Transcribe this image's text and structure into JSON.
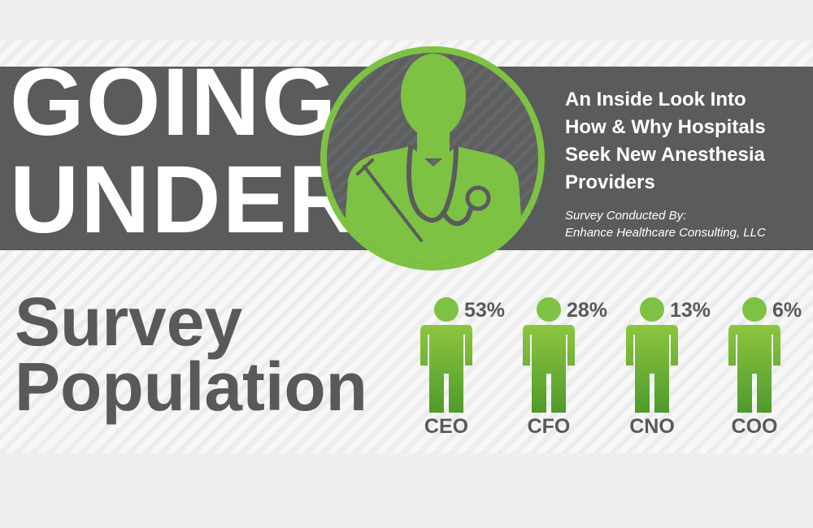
{
  "header": {
    "title_lines": [
      "GOING",
      "UNDER"
    ],
    "subtitle_lines": [
      "An Inside Look Into",
      "How & Why Hospitals",
      "Seek New Anesthesia",
      "Providers"
    ],
    "credit_lines": [
      "Survey Conducted By:",
      "Enhance Healthcare Consulting, LLC"
    ]
  },
  "survey": {
    "title_lines": [
      "Survey",
      "Population"
    ],
    "groups": [
      {
        "role": "CEO",
        "share": "53%"
      },
      {
        "role": "CFO",
        "share": "28%"
      },
      {
        "role": "CNO",
        "share": "13%"
      },
      {
        "role": "COO",
        "share": "6%"
      }
    ]
  }
}
